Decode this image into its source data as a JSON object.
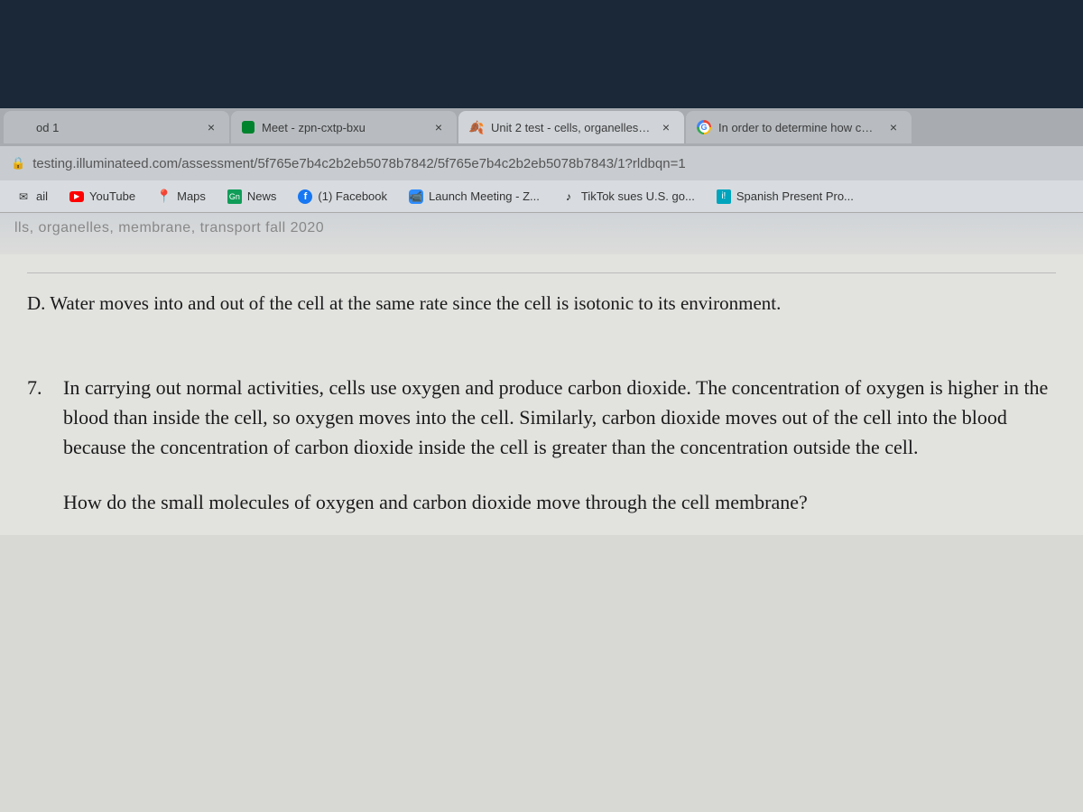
{
  "tabs": [
    {
      "title": "od 1",
      "favicon": ""
    },
    {
      "title": "Meet - zpn-cxtp-bxu",
      "favicon": "meet"
    },
    {
      "title": "Unit 2 test - cells, organelles, mer",
      "favicon": "leaf",
      "active": true
    },
    {
      "title": "In order to determine how cells r",
      "favicon": "g"
    }
  ],
  "url": "testing.illuminateed.com/assessment/5f765e7b4c2b2eb5078b7842/5f765e7b4c2b2eb5078b7843/1?rldbqn=1",
  "bookmarks": [
    {
      "label": "ail",
      "icon": ""
    },
    {
      "label": "YouTube",
      "icon": "yt"
    },
    {
      "label": "Maps",
      "icon": "maps"
    },
    {
      "label": "News",
      "icon": "news"
    },
    {
      "label": "(1) Facebook",
      "icon": "fb"
    },
    {
      "label": "Launch Meeting - Z...",
      "icon": "zoom"
    },
    {
      "label": "TikTok sues U.S. go...",
      "icon": "tiktok"
    },
    {
      "label": "Spanish Present Pro...",
      "icon": "spanish"
    }
  ],
  "page_header": "lls, organelles, membrane, transport fall 2020",
  "answer_d": "D. Water moves into and out of the cell at the same rate since the cell is isotonic to its environment.",
  "question": {
    "number": "7.",
    "text": "In carrying out normal activities, cells use oxygen and produce carbon dioxide. The concentration of oxygen is higher in the blood than inside the cell, so oxygen moves into the cell. Similarly, carbon dioxide moves out of the cell into the blood because the concentration of carbon dioxide inside the cell is greater than the concentration outside the cell.",
    "prompt": "How do the small molecules of oxygen and carbon dioxide move through the cell membrane?"
  }
}
